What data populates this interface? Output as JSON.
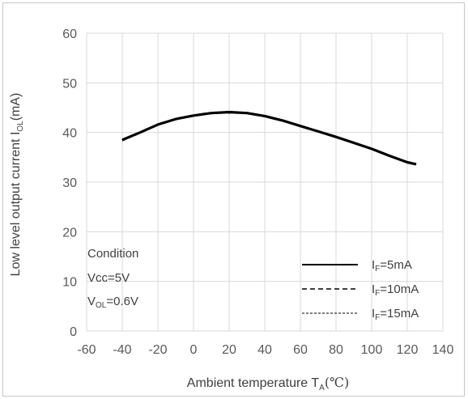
{
  "chart_data": {
    "type": "line",
    "title": "",
    "xlabel": {
      "main": "Ambient temperature T",
      "sub": "A",
      "unit": "(℃)"
    },
    "ylabel": {
      "main": "Low level output current I",
      "sub": "OL",
      "unit": "(mA)"
    },
    "xlim": [
      -60,
      140
    ],
    "ylim": [
      0,
      60
    ],
    "xticks": [
      -60,
      -40,
      -20,
      0,
      20,
      40,
      60,
      80,
      100,
      120,
      140
    ],
    "yticks": [
      0,
      10,
      20,
      30,
      40,
      50,
      60
    ],
    "grid": true,
    "legend_position": "bottom-right",
    "x": [
      -40,
      -30,
      -20,
      -10,
      0,
      10,
      20,
      30,
      40,
      50,
      60,
      70,
      80,
      90,
      100,
      110,
      120,
      125
    ],
    "series": [
      {
        "name_main": "I",
        "name_sub": "F",
        "name_rest": "=5mA",
        "style": "solid",
        "values": [
          38.5,
          40.0,
          41.6,
          42.7,
          43.4,
          43.9,
          44.1,
          43.9,
          43.3,
          42.4,
          41.3,
          40.2,
          39.1,
          37.9,
          36.7,
          35.3,
          34.0,
          33.6
        ]
      },
      {
        "name_main": "I",
        "name_sub": "F",
        "name_rest": "=10mA",
        "style": "dashed",
        "values": [
          38.4,
          40.0,
          41.6,
          42.7,
          43.4,
          43.9,
          44.0,
          43.9,
          43.3,
          42.4,
          41.3,
          40.2,
          39.1,
          37.9,
          36.7,
          35.3,
          34.0,
          33.6
        ]
      },
      {
        "name_main": "I",
        "name_sub": "F",
        "name_rest": "=15mA",
        "style": "dotted",
        "values": [
          38.5,
          40.1,
          41.7,
          42.8,
          43.5,
          44.0,
          44.1,
          44.0,
          43.4,
          42.5,
          41.4,
          40.3,
          39.2,
          38.0,
          36.8,
          35.4,
          34.1,
          33.7
        ]
      }
    ],
    "annotations": {
      "condition_title": "Condition",
      "vcc": "Vcc=5V",
      "vol_main": "V",
      "vol_sub": "OL",
      "vol_rest": "=0.6V"
    },
    "colors": {
      "line": "#000000",
      "grid": "#d9d9d9",
      "text": "#595959"
    }
  }
}
